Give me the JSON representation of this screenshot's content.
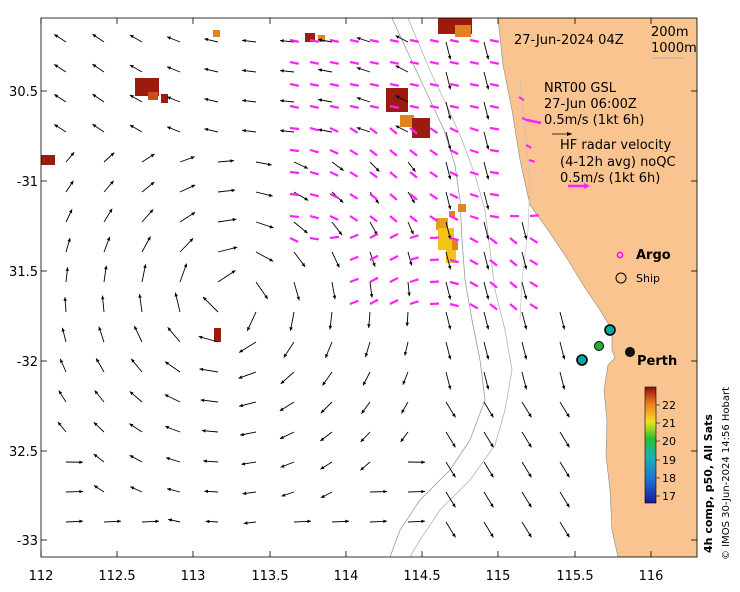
{
  "header": {
    "date": "27-Jun-2024 04Z"
  },
  "depth_legend": {
    "line1": "200m",
    "line2": "1000m"
  },
  "glider_legend": {
    "title": "NRT00 GSL",
    "time": "27-Jun 06:00Z",
    "scale": "0.5m/s (1kt 6h)"
  },
  "hf_legend": {
    "title": "HF radar velocity",
    "sub": "(4-12h avg) noQC",
    "scale": "0.5m/s (1kt 6h)"
  },
  "markers": {
    "argo": "Argo",
    "ship": "Ship",
    "city": "Perth"
  },
  "colorbar": {
    "title": "4h comp, p50, All Sats",
    "ticks": [
      "22",
      "21",
      "20",
      "19",
      "18",
      "17"
    ]
  },
  "credit": "© IMOS 30-Jun-2024 14:56 Hobart",
  "axes": {
    "lon_ticks": [
      "112",
      "112.5",
      "113",
      "113.5",
      "114",
      "114.5",
      "115",
      "115.5",
      "116"
    ],
    "lat_ticks": [
      "30.5",
      "-31",
      "31.5",
      "-32",
      "32.5",
      "-33"
    ]
  },
  "colors": {
    "land": "#f9c48f",
    "hf_arrow": "#ff22ff",
    "sst_dark": "#9b1c0e",
    "sst_warm": "#e38220",
    "sst_yellow": "#f2c418"
  }
}
